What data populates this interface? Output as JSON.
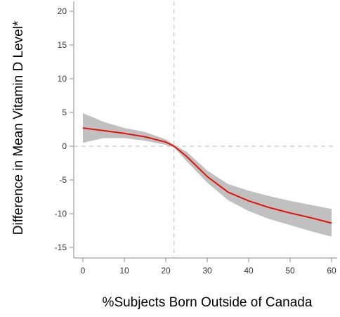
{
  "chart_data": {
    "type": "line",
    "title": "",
    "xlabel": "%Subjects Born Outside of Canada",
    "ylabel": "Difference in Mean Vitamin D Level*",
    "xlim": [
      -2,
      62
    ],
    "ylim": [
      -16,
      21
    ],
    "xticks": [
      0,
      10,
      20,
      30,
      40,
      50,
      60
    ],
    "yticks": [
      -15,
      -10,
      -5,
      0,
      5,
      10,
      15,
      20
    ],
    "reference_lines": {
      "x": 22,
      "y": 0,
      "style": "dashed"
    },
    "grid": false,
    "legend": "none",
    "series": [
      {
        "x": [
          0,
          5,
          10,
          15,
          20,
          22,
          25,
          30,
          35,
          40,
          45,
          50,
          55,
          60
        ],
        "y": [
          2.7,
          2.3,
          1.9,
          1.4,
          0.6,
          0.0,
          -1.5,
          -4.5,
          -6.8,
          -8.1,
          -9.1,
          -9.9,
          -10.6,
          -11.4
        ],
        "lower": [
          0.5,
          1.2,
          1.2,
          0.8,
          0.2,
          -0.2,
          -2.2,
          -5.4,
          -8.0,
          -9.6,
          -10.8,
          -11.7,
          -12.6,
          -13.4
        ],
        "upper": [
          4.9,
          3.6,
          2.7,
          2.1,
          1.0,
          0.2,
          -0.8,
          -3.6,
          -5.6,
          -6.6,
          -7.4,
          -8.1,
          -8.7,
          -9.3
        ]
      }
    ],
    "colors": {
      "line": "#e3120b",
      "band": "#c0c0c0",
      "reference": "#bbbbbb",
      "axis": "#888888"
    }
  }
}
